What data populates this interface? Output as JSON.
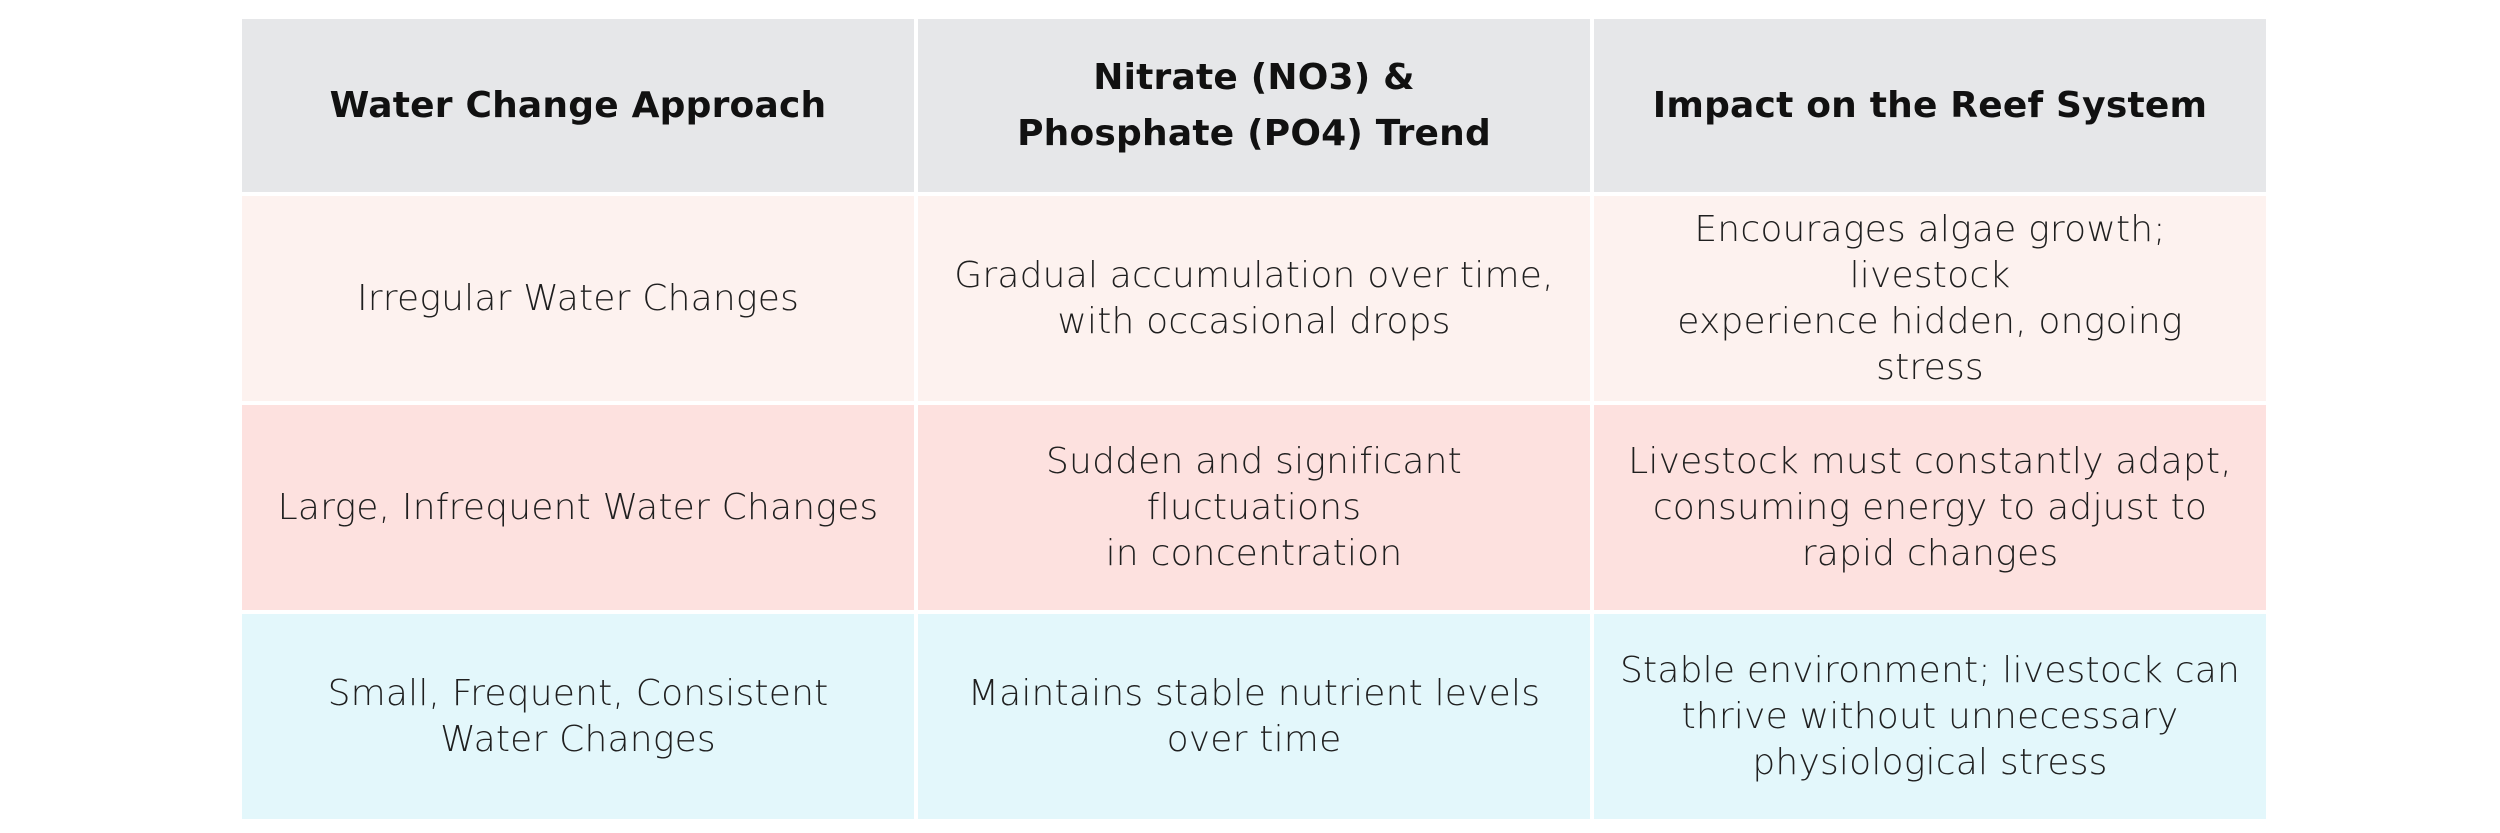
{
  "table": {
    "headers": [
      "Water Change Approach",
      "Nitrate (NO3) &\nPhosphate (PO4) Trend",
      "Impact on the Reef System"
    ],
    "rows": [
      {
        "approach": "Irregular Water Changes",
        "trend": "Gradual accumulation over time,\nwith occasional drops",
        "impact": "Encourages algae growth; livestock\nexperience hidden, ongoing stress"
      },
      {
        "approach": "Large, Infrequent Water Changes",
        "trend": "Sudden and significant fluctuations\nin concentration",
        "impact": "Livestock must constantly adapt,\nconsuming energy to adjust to\nrapid changes"
      },
      {
        "approach": "Small, Frequent, Consistent\nWater Changes",
        "trend": "Maintains stable nutrient levels\nover time",
        "impact": "Stable environment; livestock can\nthrive without unnecessary\nphysiological stress"
      }
    ]
  },
  "colors": {
    "header_bg": "#e6e7e9",
    "row_irregular_bg": "#fdf2ef",
    "row_large_infrequent_bg": "#fde1df",
    "row_small_frequent_bg": "#e3f7fb"
  }
}
